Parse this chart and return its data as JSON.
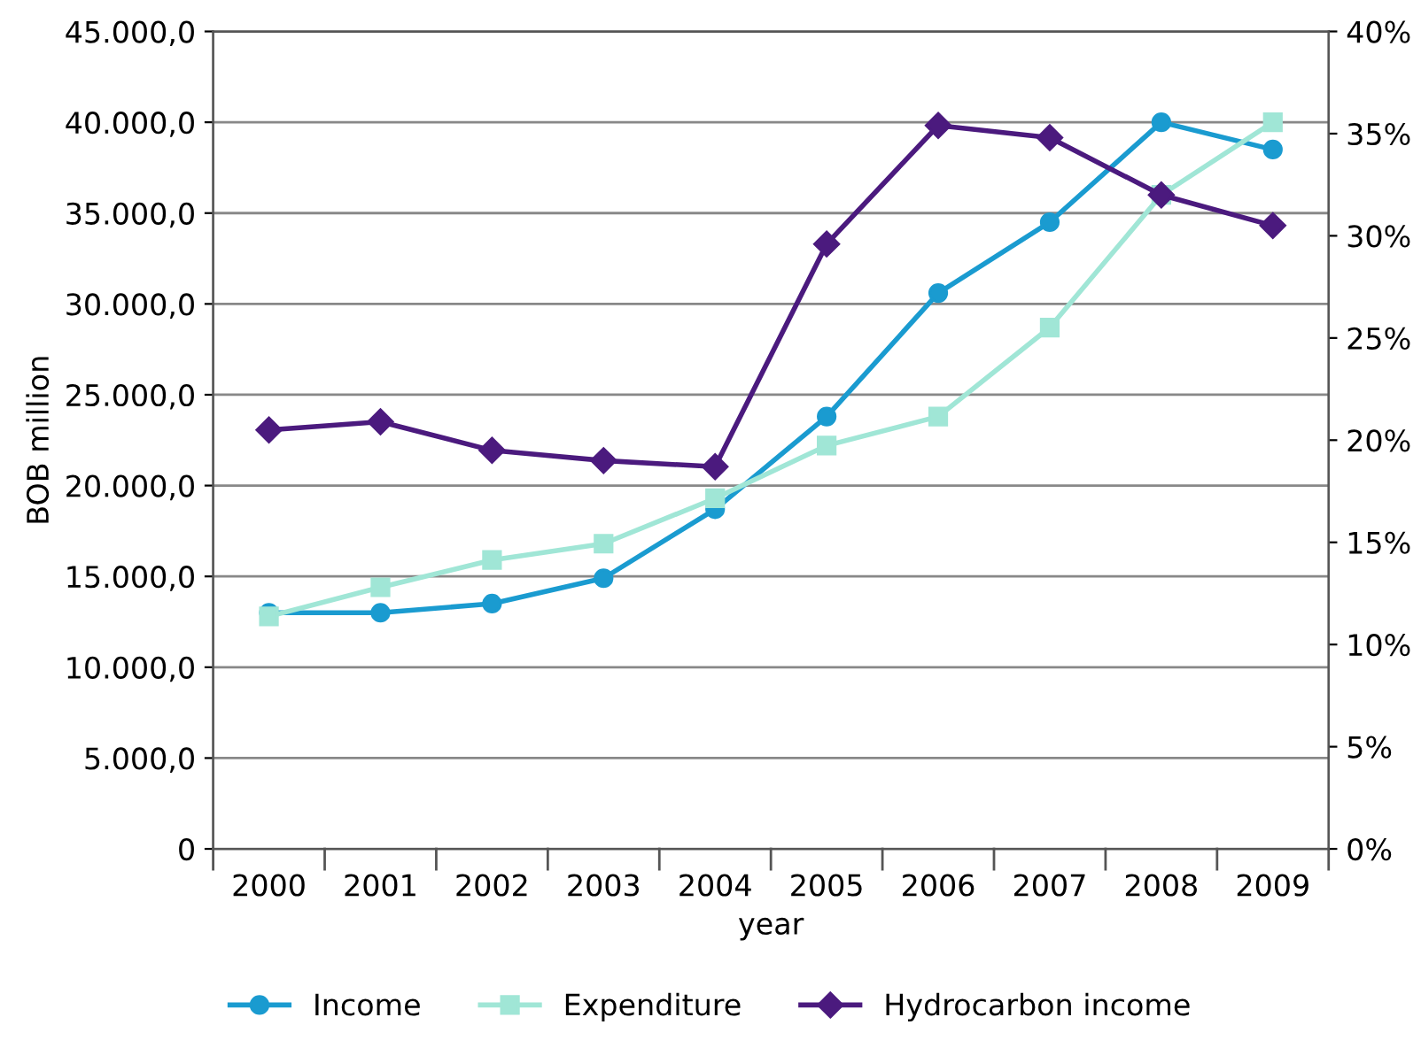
{
  "chart_data": {
    "type": "line",
    "xlabel": "year",
    "ylabel": "BOB million",
    "categories": [
      "2000",
      "2001",
      "2002",
      "2003",
      "2004",
      "2005",
      "2006",
      "2007",
      "2008",
      "2009"
    ],
    "series": [
      {
        "name": "Income",
        "color": "#1a9bd0",
        "marker": "circle",
        "values": [
          13000,
          13000,
          13500,
          14900,
          18700,
          23800,
          30600,
          34500,
          40000,
          38500
        ]
      },
      {
        "name": "Expenditure",
        "color": "#a0e6d6",
        "marker": "square",
        "values": [
          12800,
          14400,
          15900,
          16800,
          19300,
          22200,
          23800,
          28700,
          36000,
          40000
        ]
      },
      {
        "name": "Hydrocarbon income",
        "color": "#4b1a7e",
        "marker": "diamond",
        "axis": "y2",
        "values": [
          20.5,
          20.9,
          19.5,
          19.0,
          18.7,
          29.6,
          35.4,
          34.8,
          32.0,
          30.5
        ]
      }
    ],
    "ylim": [
      0,
      45000
    ],
    "yticks": [
      {
        "value": 0,
        "label": "0"
      },
      {
        "value": 5000,
        "label": "5.000,0"
      },
      {
        "value": 10000,
        "label": "10.000,0"
      },
      {
        "value": 15000,
        "label": "15.000,0"
      },
      {
        "value": 20000,
        "label": "20.000,0"
      },
      {
        "value": 25000,
        "label": "25.000,0"
      },
      {
        "value": 30000,
        "label": "30.000,0"
      },
      {
        "value": 35000,
        "label": "35.000,0"
      },
      {
        "value": 40000,
        "label": "40.000,0"
      },
      {
        "value": 45000,
        "label": "45.000,0"
      }
    ],
    "y2lim": [
      0,
      40
    ],
    "y2ticks": [
      {
        "value": 0,
        "label": "0%"
      },
      {
        "value": 5,
        "label": "5%"
      },
      {
        "value": 10,
        "label": "10%"
      },
      {
        "value": 15,
        "label": "15%"
      },
      {
        "value": 20,
        "label": "20%"
      },
      {
        "value": 25,
        "label": "25%"
      },
      {
        "value": 30,
        "label": "30%"
      },
      {
        "value": 35,
        "label": "35%"
      },
      {
        "value": 40,
        "label": "40%"
      }
    ],
    "grid": "y",
    "legend": "bottom"
  }
}
